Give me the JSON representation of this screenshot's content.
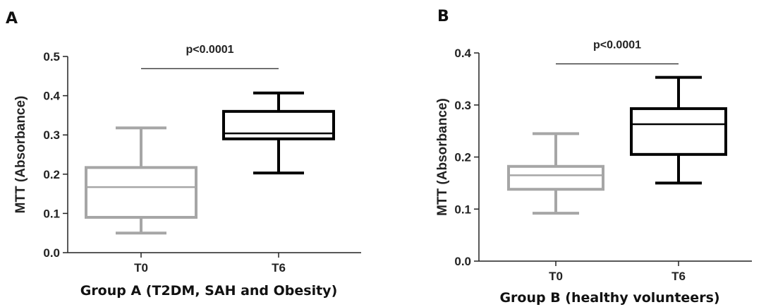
{
  "chart_data": [
    {
      "type": "box",
      "panel": "A",
      "ylabel": "MTT (Absorbance)",
      "xlabel": "Group A (T2DM, SAH and Obesity)",
      "ylim": [
        0.0,
        0.5
      ],
      "yticks": [
        0.0,
        0.1,
        0.2,
        0.3,
        0.4,
        0.5
      ],
      "ytick_labels": [
        "0.0",
        "0.1",
        "0.2",
        "0.3",
        "0.4",
        "0.5"
      ],
      "categories": [
        "T0",
        "T6"
      ],
      "boxes": [
        {
          "category": "T0",
          "min": 0.05,
          "q1": 0.09,
          "median": 0.167,
          "q3": 0.217,
          "max": 0.318,
          "color": "#a6a6a6"
        },
        {
          "category": "T6",
          "min": 0.203,
          "q1": 0.29,
          "median": 0.304,
          "q3": 0.36,
          "max": 0.407,
          "color": "#000000"
        }
      ],
      "annotation": {
        "text": "p<0.0001",
        "from": "T0",
        "to": "T6",
        "y": 0.469
      }
    },
    {
      "type": "box",
      "panel": "B",
      "ylabel": "MTT (Absorbance)",
      "xlabel": "Group B (healthy volunteers)",
      "ylim": [
        0.0,
        0.4
      ],
      "yticks": [
        0.0,
        0.1,
        0.2,
        0.3,
        0.4
      ],
      "ytick_labels": [
        "0.0",
        "0.1",
        "0.2",
        "0.3",
        "0.4"
      ],
      "categories": [
        "T0",
        "T6"
      ],
      "boxes": [
        {
          "category": "T0",
          "min": 0.092,
          "q1": 0.138,
          "median": 0.165,
          "q3": 0.182,
          "max": 0.245,
          "color": "#a6a6a6"
        },
        {
          "category": "T6",
          "min": 0.15,
          "q1": 0.205,
          "median": 0.263,
          "q3": 0.293,
          "max": 0.353,
          "color": "#000000"
        }
      ],
      "annotation": {
        "text": "p<0.0001",
        "from": "T0",
        "to": "T6",
        "y": 0.379
      }
    }
  ]
}
